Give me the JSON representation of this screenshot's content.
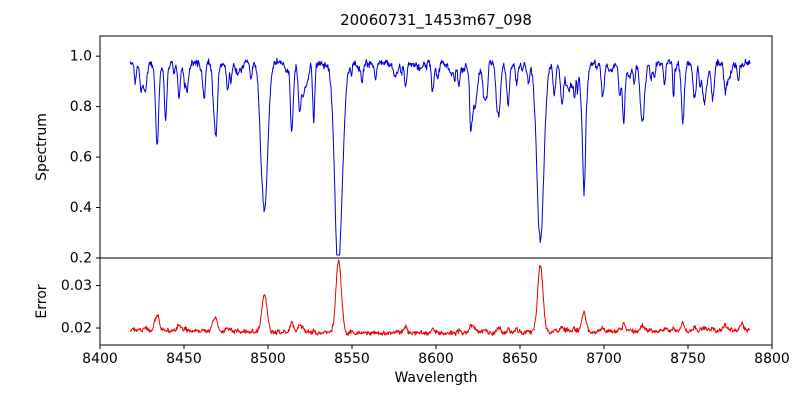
{
  "figure": {
    "background": "#ffffff"
  },
  "chart_data": {
    "type": "line",
    "title": "20060731_1453m67_098",
    "xlabel": "Wavelength",
    "xlim": [
      8400,
      8800
    ],
    "xticks": [
      8400,
      8450,
      8500,
      8550,
      8600,
      8650,
      8700,
      8750,
      8800
    ],
    "xtick_labels": [
      "8400",
      "8450",
      "8500",
      "8550",
      "8600",
      "8650",
      "8700",
      "8750",
      "8800"
    ],
    "x_data_range": [
      8418,
      8787
    ],
    "grid": false,
    "legend": "none",
    "seed": 7,
    "panels": [
      {
        "name": "spectrum",
        "ylabel": "Spectrum",
        "ylim": [
          0.2,
          1.08
        ],
        "yticks": [
          0.2,
          0.4,
          0.6,
          0.8,
          1.0
        ],
        "ytick_labels": [
          "0.2",
          "0.4",
          "0.6",
          "0.8",
          "1.0"
        ],
        "color": "#0000dd",
        "continuum": 0.972,
        "noise_amplitude": 0.01,
        "micro_lines": {
          "count": 110,
          "max_depth": 0.12,
          "min_width": 0.35,
          "max_width": 1.15
        },
        "absorption_lines": [
          {
            "center": 8421.0,
            "depth": 0.07,
            "width": 0.5
          },
          {
            "center": 8424.5,
            "depth": 0.1,
            "width": 0.7
          },
          {
            "center": 8434.0,
            "depth": 0.32,
            "width": 0.95
          },
          {
            "center": 8439.0,
            "depth": 0.2,
            "width": 0.7
          },
          {
            "center": 8447.0,
            "depth": 0.14,
            "width": 0.7
          },
          {
            "center": 8452.0,
            "depth": 0.09,
            "width": 0.6
          },
          {
            "center": 8462.0,
            "depth": 0.11,
            "width": 0.7
          },
          {
            "center": 8468.0,
            "depth": 0.19,
            "width": 0.9
          },
          {
            "center": 8476.0,
            "depth": 0.1,
            "width": 0.6
          },
          {
            "center": 8490.0,
            "depth": 0.07,
            "width": 0.6
          },
          {
            "center": 8498.0,
            "depth": 0.57,
            "width": 1.9
          },
          {
            "center": 8514.0,
            "depth": 0.18,
            "width": 0.8
          },
          {
            "center": 8519.0,
            "depth": 0.11,
            "width": 0.6
          },
          {
            "center": 8527.0,
            "depth": 0.09,
            "width": 0.6
          },
          {
            "center": 8542.1,
            "depth": 0.75,
            "width": 2.3
          },
          {
            "center": 8556.0,
            "depth": 0.07,
            "width": 0.6
          },
          {
            "center": 8564.0,
            "depth": 0.06,
            "width": 0.6
          },
          {
            "center": 8582.0,
            "depth": 0.09,
            "width": 0.7
          },
          {
            "center": 8598.0,
            "depth": 0.1,
            "width": 0.7
          },
          {
            "center": 8611.0,
            "depth": 0.07,
            "width": 0.6
          },
          {
            "center": 8621.0,
            "depth": 0.1,
            "width": 0.7
          },
          {
            "center": 8636.0,
            "depth": 0.06,
            "width": 0.6
          },
          {
            "center": 8648.0,
            "depth": 0.08,
            "width": 0.6
          },
          {
            "center": 8662.1,
            "depth": 0.7,
            "width": 2.1
          },
          {
            "center": 8675.0,
            "depth": 0.13,
            "width": 0.8
          },
          {
            "center": 8688.0,
            "depth": 0.33,
            "width": 1.1
          },
          {
            "center": 8699.0,
            "depth": 0.1,
            "width": 0.7
          },
          {
            "center": 8712.0,
            "depth": 0.14,
            "width": 0.8
          },
          {
            "center": 8718.0,
            "depth": 0.08,
            "width": 0.6
          },
          {
            "center": 8730.0,
            "depth": 0.06,
            "width": 0.6
          },
          {
            "center": 8736.0,
            "depth": 0.08,
            "width": 0.6
          },
          {
            "center": 8747.0,
            "depth": 0.12,
            "width": 0.7
          },
          {
            "center": 8757.0,
            "depth": 0.07,
            "width": 0.6
          },
          {
            "center": 8764.0,
            "depth": 0.06,
            "width": 0.6
          },
          {
            "center": 8772.0,
            "depth": 0.1,
            "width": 0.7
          },
          {
            "center": 8780.0,
            "depth": 0.07,
            "width": 0.6
          }
        ]
      },
      {
        "name": "error",
        "ylabel": "Error",
        "ylim": [
          0.016,
          0.0365
        ],
        "yticks": [
          0.02,
          0.03
        ],
        "ytick_labels": [
          "0.02",
          "0.03"
        ],
        "color": "#ee0000",
        "baseline": 0.0188,
        "edge_rise": 0.0008,
        "edge_center": 8600,
        "edge_span": 190,
        "noise_amplitude": 0.0004,
        "peaks": [
          {
            "center": 8434.0,
            "amplitude": 0.0035,
            "width": 1.4
          },
          {
            "center": 8447.0,
            "amplitude": 0.0012,
            "width": 1.0
          },
          {
            "center": 8468.0,
            "amplitude": 0.0026,
            "width": 1.4
          },
          {
            "center": 8476.0,
            "amplitude": 0.001,
            "width": 1.0
          },
          {
            "center": 8498.0,
            "amplitude": 0.009,
            "width": 1.5
          },
          {
            "center": 8514.0,
            "amplitude": 0.0018,
            "width": 1.0
          },
          {
            "center": 8519.0,
            "amplitude": 0.001,
            "width": 1.0
          },
          {
            "center": 8542.1,
            "amplitude": 0.0165,
            "width": 1.6
          },
          {
            "center": 8582.0,
            "amplitude": 0.0014,
            "width": 1.0
          },
          {
            "center": 8598.0,
            "amplitude": 0.001,
            "width": 1.0
          },
          {
            "center": 8621.0,
            "amplitude": 0.001,
            "width": 1.0
          },
          {
            "center": 8648.0,
            "amplitude": 0.0008,
            "width": 1.0
          },
          {
            "center": 8662.1,
            "amplitude": 0.0158,
            "width": 1.6
          },
          {
            "center": 8675.0,
            "amplitude": 0.0014,
            "width": 1.0
          },
          {
            "center": 8688.0,
            "amplitude": 0.0036,
            "width": 1.3
          },
          {
            "center": 8699.0,
            "amplitude": 0.001,
            "width": 1.0
          },
          {
            "center": 8712.0,
            "amplitude": 0.0015,
            "width": 1.0
          },
          {
            "center": 8736.0,
            "amplitude": 0.0008,
            "width": 1.0
          },
          {
            "center": 8747.0,
            "amplitude": 0.0012,
            "width": 1.0
          },
          {
            "center": 8772.0,
            "amplitude": 0.0012,
            "width": 1.0
          },
          {
            "center": 8782.0,
            "amplitude": 0.0014,
            "width": 1.0
          }
        ]
      }
    ]
  }
}
